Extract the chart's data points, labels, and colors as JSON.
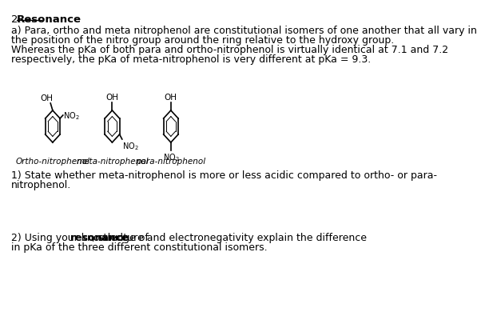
{
  "title_number": "2.",
  "title_word": "Resonance",
  "para_a": "a) Para, ortho and meta nitrophenol are constitutional isomers of one another that all vary in",
  "para_a2": "the position of the nitro group around the ring relative to the hydroxy group.",
  "para_b": "Whereas the pKa of both para and ortho-nitrophenol is virtually identical at 7.1 and 7.2",
  "para_b2": "respectively, the pKa of meta-nitrophenol is very different at pKa = 9.3.",
  "label1": "Ortho-nitrophenol",
  "label2": "meta-nitrophenol",
  "label3": "para-nitrophenol",
  "q1": "1) State whether meta-nitrophenol is more or less acidic compared to ortho- or para-",
  "q1b": "nitrophenol.",
  "q2_pre": "2) Using your knowledge of ",
  "q2_bold": "resonance",
  "q2_post": ", structure and electronegativity explain the difference",
  "q2b": "in pKa of the three different constitutional isomers.",
  "bg_color": "#ffffff",
  "text_color": "#000000",
  "font_size": 9.5,
  "ring_color": "#000000"
}
